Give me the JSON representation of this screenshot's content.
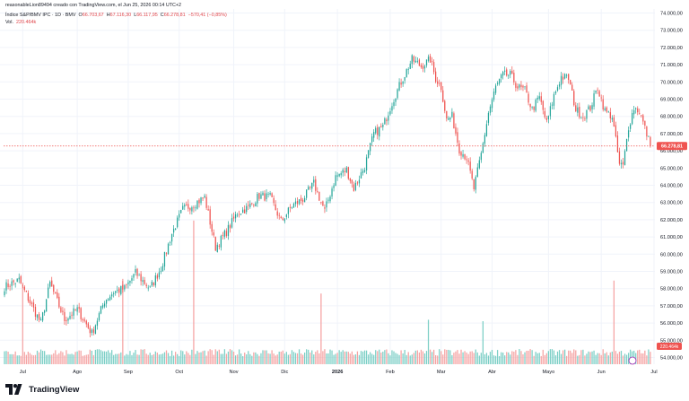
{
  "header": {
    "attribution": "reasonableLion89494 creado con TradingView.com, el Jun 25, 2026 00:14 UTC+2",
    "symbol": "Índice S&P/BMV IPC · 1D · BMV",
    "open_label": "O",
    "open": "66.703,67",
    "high_label": "H",
    "high": "67.116,30",
    "low_label": "L",
    "low": "66.117,95",
    "close_label": "C",
    "close": "66.278,81",
    "change": "−570,41 (−0,85%)",
    "volume_label": "Vol.",
    "volume": "220.464k"
  },
  "brand": {
    "name": "TradingView",
    "icon": "tradingview-logo-icon"
  },
  "colors": {
    "up": "#26a69a",
    "down": "#ef5350",
    "up_vol": "#7ccfc6",
    "down_vol": "#f5a3a3",
    "grid": "#f0f3fa",
    "axis_text": "#131722",
    "last_price": "#ef5350"
  },
  "chart_data": {
    "type": "candlestick",
    "y_axis": {
      "side": "right",
      "ylim": [
        53500,
        74500
      ],
      "ticks": [
        "74.000,00",
        "73.000,00",
        "72.000,00",
        "71.000,00",
        "70.000,00",
        "69.000,00",
        "68.000,00",
        "67.000,00",
        "66.000,00",
        "65.000,00",
        "64.000,00",
        "63.000,00",
        "62.000,00",
        "61.000,00",
        "60.000,00",
        "59.000,00",
        "58.000,00",
        "57.000,00",
        "56.000,00",
        "55.000,00",
        "54.000,00"
      ],
      "tick_values": [
        74000,
        73000,
        72000,
        71000,
        70000,
        69000,
        68000,
        67000,
        66000,
        65000,
        64000,
        63000,
        62000,
        61000,
        60000,
        59000,
        58000,
        57000,
        56000,
        55000,
        54000
      ]
    },
    "x_axis": {
      "labels": [
        "Jul",
        "Ago",
        "Sep",
        "Oct",
        "Nov",
        "Dic",
        "2026",
        "Feb",
        "Mar",
        "Abr",
        "Mayo",
        "Jun",
        "Jul"
      ],
      "label_index": [
        10,
        40,
        68,
        96,
        126,
        154,
        183,
        212,
        240,
        268,
        299,
        328,
        357
      ],
      "bold": [
        "2026"
      ]
    },
    "last_price": {
      "value": 66278.81,
      "label": "66.278,81"
    },
    "volume_last_label": "220.464k",
    "anchors": [
      [
        0,
        58100
      ],
      [
        8,
        58500
      ],
      [
        15,
        57000
      ],
      [
        20,
        56000
      ],
      [
        25,
        58300
      ],
      [
        33,
        56200
      ],
      [
        40,
        56800
      ],
      [
        48,
        55400
      ],
      [
        55,
        57300
      ],
      [
        60,
        57800
      ],
      [
        66,
        58000
      ],
      [
        72,
        58900
      ],
      [
        80,
        58000
      ],
      [
        86,
        59200
      ],
      [
        92,
        61200
      ],
      [
        98,
        62600
      ],
      [
        104,
        62900
      ],
      [
        110,
        63300
      ],
      [
        116,
        60400
      ],
      [
        122,
        61300
      ],
      [
        128,
        62400
      ],
      [
        134,
        62700
      ],
      [
        140,
        63400
      ],
      [
        146,
        63300
      ],
      [
        152,
        61900
      ],
      [
        158,
        62800
      ],
      [
        164,
        63200
      ],
      [
        170,
        64100
      ],
      [
        176,
        62500
      ],
      [
        182,
        64500
      ],
      [
        188,
        64900
      ],
      [
        192,
        63800
      ],
      [
        198,
        65100
      ],
      [
        203,
        67000
      ],
      [
        208,
        67400
      ],
      [
        213,
        68800
      ],
      [
        218,
        70000
      ],
      [
        224,
        71300
      ],
      [
        229,
        70900
      ],
      [
        234,
        71300
      ],
      [
        237,
        70200
      ],
      [
        240,
        69700
      ],
      [
        243,
        67800
      ],
      [
        246,
        68000
      ],
      [
        250,
        66100
      ],
      [
        254,
        65600
      ],
      [
        258,
        63800
      ],
      [
        262,
        65800
      ],
      [
        266,
        68200
      ],
      [
        270,
        69700
      ],
      [
        274,
        70400
      ],
      [
        278,
        70400
      ],
      [
        282,
        69700
      ],
      [
        286,
        69500
      ],
      [
        290,
        68400
      ],
      [
        294,
        69100
      ],
      [
        298,
        67600
      ],
      [
        302,
        69200
      ],
      [
        306,
        70300
      ],
      [
        310,
        70200
      ],
      [
        314,
        68400
      ],
      [
        318,
        68000
      ],
      [
        322,
        68500
      ],
      [
        326,
        69700
      ],
      [
        330,
        68300
      ],
      [
        334,
        68000
      ],
      [
        338,
        65200
      ],
      [
        340,
        65100
      ],
      [
        343,
        67400
      ],
      [
        346,
        68500
      ],
      [
        349,
        68300
      ],
      [
        352,
        67300
      ],
      [
        355,
        66300
      ]
    ],
    "volume_spikes": [
      [
        10,
        2.7
      ],
      [
        65,
        3.5
      ],
      [
        104,
        4.3
      ],
      [
        174,
        3.1
      ],
      [
        233,
        1.3
      ],
      [
        263,
        1.2
      ],
      [
        335,
        3.9
      ],
      [
        356,
        1.5
      ]
    ]
  }
}
